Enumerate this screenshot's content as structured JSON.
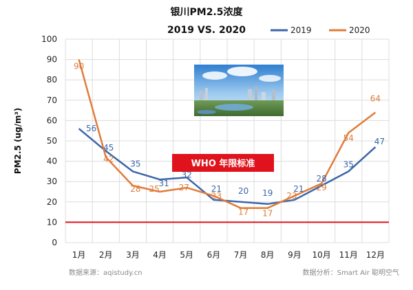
{
  "chart_data": {
    "type": "line",
    "title": "银川PM2.5浓度",
    "subtitle": "2019 VS. 2020",
    "ylabel": "PM2.5 (ug/m³)",
    "ylim": [
      0,
      100
    ],
    "yticks": [
      0,
      10,
      20,
      30,
      40,
      50,
      60,
      70,
      80,
      90,
      100
    ],
    "grid": true,
    "legend_position": "top-right",
    "categories": [
      "1月",
      "2月",
      "3月",
      "4月",
      "5月",
      "6月",
      "7月",
      "8月",
      "9月",
      "10月",
      "11月",
      "12月"
    ],
    "series": [
      {
        "name": "2019",
        "color": "#3a66a8",
        "values": [
          56,
          45,
          35,
          31,
          32,
          21,
          20,
          19,
          21,
          28,
          35,
          47
        ]
      },
      {
        "name": "2020",
        "color": "#e07b39",
        "values": [
          90,
          42,
          28,
          25,
          27,
          23,
          17,
          17,
          23,
          29,
          54,
          64
        ]
      }
    ],
    "reference_line": {
      "value": 10,
      "label": "WHO 年限标准",
      "color": "#e0121b"
    }
  },
  "footer": {
    "source": "数据来源：aqistudy.cn",
    "analysis": "数据分析：Smart Air  聪明空气"
  },
  "image": {
    "icon": "city-skyline-photo"
  }
}
